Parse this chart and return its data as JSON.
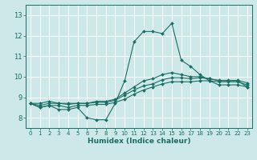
{
  "title": "",
  "xlabel": "Humidex (Indice chaleur)",
  "ylabel": "",
  "bg_color": "#cce8e8",
  "grid_color": "#ffffff",
  "line_color": "#1a6e64",
  "xlim": [
    -0.5,
    23.5
  ],
  "ylim": [
    7.5,
    13.5
  ],
  "xticks": [
    0,
    1,
    2,
    3,
    4,
    5,
    6,
    7,
    8,
    9,
    10,
    11,
    12,
    13,
    14,
    15,
    16,
    17,
    18,
    19,
    20,
    21,
    22,
    23
  ],
  "yticks": [
    8,
    9,
    10,
    11,
    12,
    13
  ],
  "series": [
    {
      "x": [
        0,
        1,
        2,
        3,
        4,
        5,
        6,
        7,
        8,
        9,
        10,
        11,
        12,
        13,
        14,
        15,
        16,
        17,
        18,
        19,
        20,
        21,
        22,
        23
      ],
      "y": [
        8.7,
        8.5,
        8.6,
        8.4,
        8.4,
        8.5,
        8.0,
        7.9,
        7.9,
        8.7,
        9.8,
        11.7,
        12.2,
        12.2,
        12.1,
        12.6,
        10.8,
        10.5,
        10.1,
        9.8,
        9.6,
        9.6,
        9.6,
        9.5
      ]
    },
    {
      "x": [
        0,
        1,
        2,
        3,
        4,
        5,
        6,
        7,
        8,
        9,
        10,
        11,
        12,
        13,
        14,
        15,
        16,
        17,
        18,
        19,
        20,
        21,
        22,
        23
      ],
      "y": [
        8.7,
        8.5,
        8.6,
        8.6,
        8.5,
        8.6,
        8.6,
        8.65,
        8.65,
        8.75,
        8.9,
        9.15,
        9.35,
        9.5,
        9.65,
        9.75,
        9.75,
        9.75,
        9.8,
        9.8,
        9.75,
        9.75,
        9.75,
        9.6
      ]
    },
    {
      "x": [
        0,
        1,
        2,
        3,
        4,
        5,
        6,
        7,
        8,
        9,
        10,
        11,
        12,
        13,
        14,
        15,
        16,
        17,
        18,
        19,
        20,
        21,
        22,
        23
      ],
      "y": [
        8.7,
        8.6,
        8.7,
        8.7,
        8.65,
        8.7,
        8.7,
        8.75,
        8.75,
        8.85,
        9.1,
        9.35,
        9.55,
        9.65,
        9.85,
        9.95,
        9.95,
        9.9,
        9.95,
        9.9,
        9.82,
        9.82,
        9.82,
        9.7
      ]
    },
    {
      "x": [
        0,
        1,
        2,
        3,
        4,
        5,
        6,
        7,
        8,
        9,
        10,
        11,
        12,
        13,
        14,
        15,
        16,
        17,
        18,
        19,
        20,
        21,
        22,
        23
      ],
      "y": [
        8.7,
        8.7,
        8.8,
        8.7,
        8.7,
        8.7,
        8.7,
        8.8,
        8.8,
        8.9,
        9.2,
        9.5,
        9.8,
        9.9,
        10.1,
        10.2,
        10.1,
        10.0,
        10.0,
        9.9,
        9.8,
        9.8,
        9.8,
        9.5
      ]
    }
  ]
}
